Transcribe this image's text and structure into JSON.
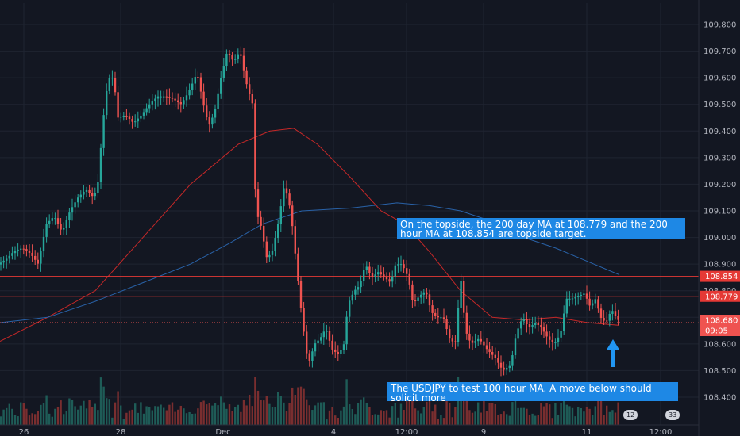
{
  "chart_data": {
    "type": "candlestick",
    "instrument": "USDJPY",
    "y_axis_ticks": [
      "108.400",
      "108.500",
      "108.600",
      "108.700",
      "108.800",
      "108.900",
      "109.000",
      "109.100",
      "109.200",
      "109.300",
      "109.400",
      "109.500",
      "109.600",
      "109.700",
      "109.800"
    ],
    "ylim": [
      108.33,
      109.84
    ],
    "x_axis_ticks": [
      "26",
      "28",
      "Dec",
      "4",
      "12:00",
      "9",
      "11",
      "12:00"
    ],
    "horizontal_levels": [
      {
        "label": "108.854",
        "value": 108.854,
        "color": "#e53935"
      },
      {
        "label": "108.779",
        "value": 108.779,
        "color": "#e53935"
      }
    ],
    "current_price": {
      "label": "108.680",
      "value": 108.68,
      "countdown": "09:05",
      "color": "#ef5350"
    },
    "moving_averages": [
      {
        "color": "#c62828",
        "points": [
          [
            0,
            108.61
          ],
          [
            60,
            108.7
          ],
          [
            120,
            108.8
          ],
          [
            180,
            109.0
          ],
          [
            240,
            109.2
          ],
          [
            300,
            109.35
          ],
          [
            340,
            109.4
          ],
          [
            370,
            109.41
          ],
          [
            400,
            109.35
          ],
          [
            440,
            109.23
          ],
          [
            480,
            109.1
          ],
          [
            510,
            109.05
          ],
          [
            540,
            108.95
          ],
          [
            580,
            108.8
          ],
          [
            620,
            108.7
          ],
          [
            660,
            108.69
          ],
          [
            700,
            108.7
          ],
          [
            740,
            108.68
          ],
          [
            780,
            108.67
          ]
        ]
      },
      {
        "color": "#2962a8",
        "points": [
          [
            0,
            108.68
          ],
          [
            60,
            108.7
          ],
          [
            120,
            108.76
          ],
          [
            180,
            108.83
          ],
          [
            240,
            108.9
          ],
          [
            290,
            108.98
          ],
          [
            330,
            109.05
          ],
          [
            380,
            109.1
          ],
          [
            440,
            109.11
          ],
          [
            500,
            109.13
          ],
          [
            540,
            109.12
          ],
          [
            580,
            109.1
          ],
          [
            620,
            109.06
          ],
          [
            660,
            109.0
          ],
          [
            700,
            108.96
          ],
          [
            740,
            108.91
          ],
          [
            780,
            108.86
          ]
        ]
      }
    ],
    "price_path": [
      [
        0,
        108.9
      ],
      [
        10,
        108.92
      ],
      [
        20,
        108.95
      ],
      [
        30,
        108.96
      ],
      [
        40,
        108.94
      ],
      [
        50,
        108.9
      ],
      [
        60,
        109.05
      ],
      [
        70,
        109.08
      ],
      [
        80,
        109.02
      ],
      [
        90,
        109.1
      ],
      [
        100,
        109.15
      ],
      [
        110,
        109.18
      ],
      [
        120,
        109.15
      ],
      [
        125,
        109.2
      ],
      [
        132,
        109.45
      ],
      [
        138,
        109.6
      ],
      [
        145,
        109.6
      ],
      [
        150,
        109.45
      ],
      [
        160,
        109.46
      ],
      [
        170,
        109.43
      ],
      [
        180,
        109.46
      ],
      [
        190,
        109.5
      ],
      [
        200,
        109.53
      ],
      [
        210,
        109.53
      ],
      [
        220,
        109.52
      ],
      [
        230,
        109.5
      ],
      [
        240,
        109.55
      ],
      [
        250,
        109.62
      ],
      [
        258,
        109.5
      ],
      [
        265,
        109.42
      ],
      [
        272,
        109.47
      ],
      [
        280,
        109.6
      ],
      [
        288,
        109.7
      ],
      [
        296,
        109.66
      ],
      [
        304,
        109.7
      ],
      [
        312,
        109.58
      ],
      [
        320,
        109.5
      ],
      [
        324,
        109.1
      ],
      [
        330,
        109.05
      ],
      [
        338,
        108.92
      ],
      [
        345,
        108.95
      ],
      [
        352,
        109.05
      ],
      [
        360,
        109.2
      ],
      [
        368,
        109.1
      ],
      [
        375,
        108.9
      ],
      [
        382,
        108.7
      ],
      [
        390,
        108.52
      ],
      [
        398,
        108.6
      ],
      [
        405,
        108.62
      ],
      [
        412,
        108.66
      ],
      [
        420,
        108.58
      ],
      [
        428,
        108.56
      ],
      [
        435,
        108.6
      ],
      [
        440,
        108.75
      ],
      [
        448,
        108.8
      ],
      [
        455,
        108.82
      ],
      [
        462,
        108.9
      ],
      [
        470,
        108.85
      ],
      [
        478,
        108.87
      ],
      [
        486,
        108.85
      ],
      [
        494,
        108.83
      ],
      [
        500,
        108.9
      ],
      [
        508,
        108.9
      ],
      [
        516,
        108.85
      ],
      [
        522,
        108.75
      ],
      [
        530,
        108.78
      ],
      [
        538,
        108.8
      ],
      [
        545,
        108.72
      ],
      [
        552,
        108.7
      ],
      [
        560,
        108.7
      ],
      [
        568,
        108.62
      ],
      [
        575,
        108.6
      ],
      [
        582,
        108.85
      ],
      [
        588,
        108.65
      ],
      [
        595,
        108.6
      ],
      [
        605,
        108.62
      ],
      [
        615,
        108.58
      ],
      [
        625,
        108.55
      ],
      [
        635,
        108.5
      ],
      [
        645,
        108.52
      ],
      [
        652,
        108.64
      ],
      [
        660,
        108.7
      ],
      [
        668,
        108.66
      ],
      [
        676,
        108.68
      ],
      [
        684,
        108.66
      ],
      [
        692,
        108.62
      ],
      [
        700,
        108.6
      ],
      [
        708,
        108.64
      ],
      [
        715,
        108.77
      ],
      [
        722,
        108.77
      ],
      [
        730,
        108.78
      ],
      [
        738,
        108.79
      ],
      [
        745,
        108.74
      ],
      [
        752,
        108.77
      ],
      [
        758,
        108.7
      ],
      [
        765,
        108.68
      ],
      [
        772,
        108.73
      ],
      [
        780,
        108.69
      ]
    ]
  },
  "annotations": [
    {
      "text": "On the topside, the 200 day MA at 108.779 and the 200 hour MA at 108.854 are topside target."
    },
    {
      "text": "The USDJPY to test 100 hour MA. A move below should solicit more"
    }
  ],
  "badges": [
    "12",
    "33"
  ],
  "arrow_color": "#2196f3"
}
